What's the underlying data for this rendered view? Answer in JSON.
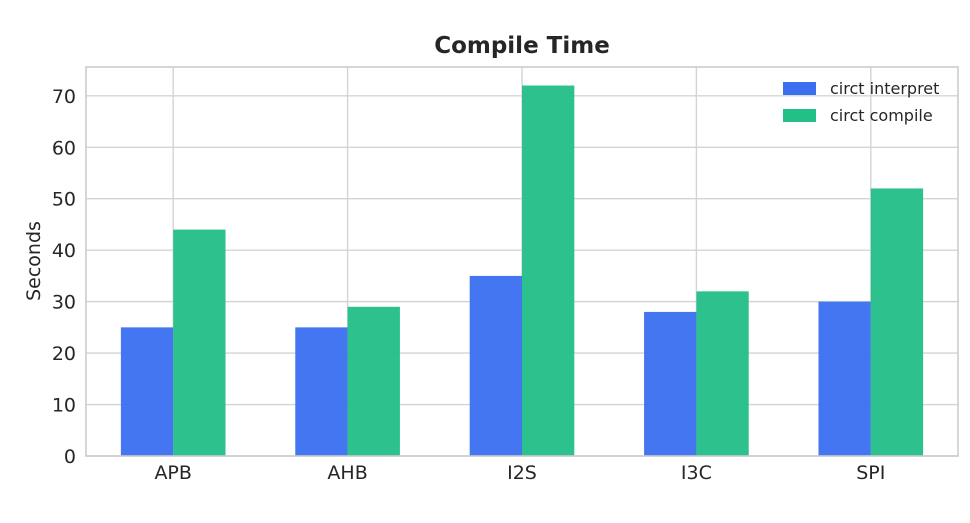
{
  "chart_data": {
    "type": "bar",
    "title": "Compile Time",
    "xlabel": "",
    "ylabel": "Seconds",
    "categories": [
      "APB",
      "AHB",
      "I2S",
      "I3C",
      "SPI"
    ],
    "series": [
      {
        "name": "circt interpret",
        "values": [
          25,
          25,
          35,
          28,
          30
        ],
        "color": "#3b6ff0"
      },
      {
        "name": "circt compile",
        "values": [
          44,
          29,
          72,
          32,
          52
        ],
        "color": "#22bf87"
      }
    ],
    "ylim": [
      0,
      75.6
    ],
    "yticks": [
      0,
      10,
      20,
      30,
      40,
      50,
      60,
      70
    ],
    "grid": true,
    "legend_position": "top-right"
  }
}
